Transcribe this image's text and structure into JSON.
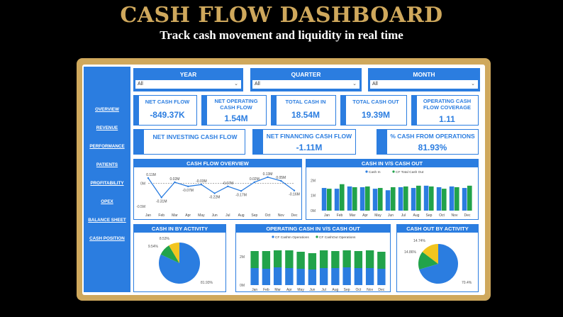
{
  "header": {
    "title": "CASH FLOW DASHBOARD",
    "subtitle": "Track cash movement and liquidity in real time"
  },
  "sidebar": {
    "items": [
      {
        "label": "OVERVIEW"
      },
      {
        "label": "REVENUE"
      },
      {
        "label": "PERFORMANCE"
      },
      {
        "label": "PATIENTS"
      },
      {
        "label": "PROFITABILITY"
      },
      {
        "label": "OPEX"
      },
      {
        "label": "BALANCE SHEET"
      },
      {
        "label": "CASH POSITION"
      }
    ]
  },
  "filters": {
    "year": {
      "label": "YEAR",
      "value": "All"
    },
    "quarter": {
      "label": "QUARTER",
      "value": "All"
    },
    "month": {
      "label": "MONTH",
      "value": "All"
    }
  },
  "kpis": {
    "net_cash_flow": {
      "label": "NET CASH FLOW",
      "value": "-849.37K"
    },
    "net_operating": {
      "label": "NET OPERATING CASH FLOW",
      "value": "1.54M"
    },
    "total_cash_in": {
      "label": "TOTAL CASH IN",
      "value": "18.54M"
    },
    "total_cash_out": {
      "label": "TOTAL CASH OUT",
      "value": "19.39M"
    },
    "op_coverage": {
      "label": "OPERATING CASH FLOW COVERAGE",
      "value": "1.11"
    },
    "net_investing": {
      "label": "NET INVESTING CASH FLOW",
      "value": ""
    },
    "net_financing": {
      "label": "NET FINANCING CASH FLOW",
      "value": "-1.11M"
    },
    "pct_operations": {
      "label": "% CASH FROM OPERATIONS",
      "value": "81.93%"
    }
  },
  "colors": {
    "accent": "#2b7de0",
    "gold": "#cfa85c",
    "green": "#22a34a",
    "yellow": "#f2c51f"
  },
  "chart_data": [
    {
      "type": "line",
      "title": "CASH FLOW OVERVIEW",
      "categories": [
        "Jan",
        "Feb",
        "Mar",
        "Apr",
        "May",
        "Jun",
        "Jul",
        "Aug",
        "Sep",
        "Oct",
        "Nov",
        "Dec"
      ],
      "values": [
        0.11,
        -0.31,
        0.02,
        -0.07,
        -0.03,
        -0.22,
        -0.07,
        -0.17,
        0.02,
        0.13,
        0.05,
        -0.16
      ],
      "data_labels": [
        "0.11M",
        "-0.31M",
        "0.02M",
        "-0.07M",
        "-0.03M",
        "-0.22M",
        "-0.07M",
        "-0.17M",
        "0.02M",
        "0.13M",
        "0.05M",
        "-0.16M"
      ],
      "ticks": [
        {
          "label": "0M",
          "value": 0
        },
        {
          "label": "-0.5M",
          "value": -0.5
        }
      ],
      "ylim": [
        -0.55,
        0.25
      ],
      "reference_line": 0.0
    },
    {
      "type": "bar",
      "title": "CASH IN V/S CASH OUT",
      "categories": [
        "Jan",
        "Feb",
        "Mar",
        "Apr",
        "May",
        "Jun",
        "Jul",
        "Aug",
        "Sep",
        "Oct",
        "Nov",
        "Dec"
      ],
      "series": [
        {
          "name": "Cash In",
          "values": [
            1.5,
            1.45,
            1.6,
            1.55,
            1.45,
            1.35,
            1.55,
            1.5,
            1.65,
            1.55,
            1.6,
            1.5
          ]
        },
        {
          "name": "CF Total Cash Out",
          "values": [
            1.45,
            1.75,
            1.55,
            1.6,
            1.5,
            1.55,
            1.6,
            1.65,
            1.6,
            1.45,
            1.55,
            1.65
          ]
        }
      ],
      "ticks": [
        {
          "label": "2M",
          "value": 2
        },
        {
          "label": "1M",
          "value": 1
        },
        {
          "label": "0M",
          "value": 0
        }
      ],
      "ylim": [
        0,
        2.3
      ],
      "legend": "top"
    },
    {
      "type": "pie",
      "title": "CASH IN BY ACTIVITY",
      "values": [
        81.93,
        9.54,
        8.53
      ],
      "labels": [
        "81.93%",
        "9.54%",
        "8.53%"
      ],
      "colors": [
        "#2b7de0",
        "#22a34a",
        "#f2c51f"
      ]
    },
    {
      "type": "bar",
      "stacked": true,
      "title": "OPERATING CASH IN V/S CASH OUT",
      "categories": [
        "Jan",
        "Feb",
        "Mar",
        "Apr",
        "May",
        "Jun",
        "Jul",
        "Aug",
        "Sep",
        "Oct",
        "Nov",
        "Dec"
      ],
      "series": [
        {
          "name": "CF CashIn Operations",
          "values": [
            1.2,
            1.15,
            1.25,
            1.2,
            1.15,
            1.1,
            1.2,
            1.2,
            1.25,
            1.2,
            1.2,
            1.15
          ]
        },
        {
          "name": "CF CashOut Operations",
          "values": [
            1.2,
            1.25,
            1.2,
            1.25,
            1.2,
            1.15,
            1.25,
            1.2,
            1.2,
            1.2,
            1.25,
            1.2
          ]
        }
      ],
      "ticks": [
        {
          "label": "2M",
          "value": 2
        },
        {
          "label": "0M",
          "value": 0
        }
      ],
      "ylim": [
        0,
        3.0
      ],
      "legend": "top"
    },
    {
      "type": "pie",
      "title": "CASH OUT BY ACTIVITY",
      "values": [
        70.4,
        14.86,
        14.74
      ],
      "labels": [
        "70.4%",
        "14.86%",
        "14.74%"
      ],
      "colors": [
        "#2b7de0",
        "#22a34a",
        "#f2c51f"
      ]
    }
  ]
}
